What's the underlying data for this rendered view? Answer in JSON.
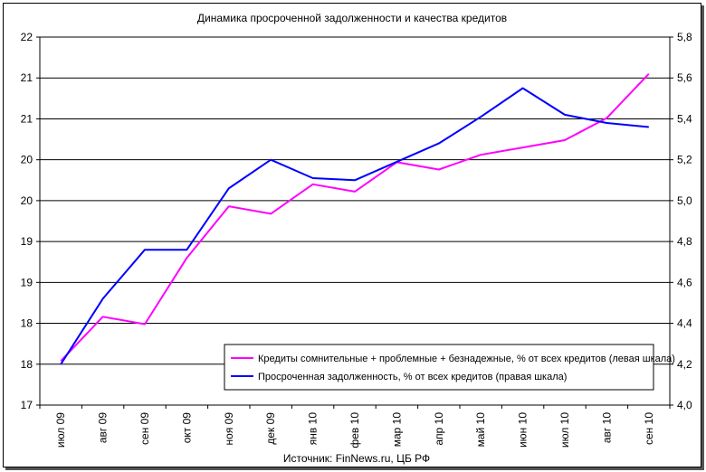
{
  "chart_data": {
    "type": "line",
    "title": "Динамика просроченной задолженности и качества кредитов",
    "source": "Источник: FinNews.ru, ЦБ РФ",
    "categories": [
      "июл 09",
      "авг 09",
      "сен 09",
      "окт 09",
      "ноя 09",
      "дек 09",
      "янв 10",
      "фев 10",
      "мар 10",
      "апр 10",
      "май 10",
      "июн 10",
      "июл 10",
      "авг 10",
      "сен 10"
    ],
    "left_axis": {
      "ticks": [
        "17",
        "18",
        "18",
        "19",
        "19",
        "20",
        "20",
        "21",
        "21",
        "22"
      ],
      "range": [
        17,
        22
      ]
    },
    "right_axis": {
      "ticks": [
        "4,0",
        "4,2",
        "4,4",
        "4,6",
        "4,8",
        "5,0",
        "5,2",
        "5,4",
        "5,6",
        "5,8"
      ],
      "range": [
        4.0,
        5.8
      ]
    },
    "series": [
      {
        "name": "Кредиты сомнительные + проблемные + безнадежные, % от всех кредитов (левая шкала)",
        "color": "#ff00ff",
        "axis": "left",
        "values": [
          17.6,
          18.2,
          18.1,
          19.0,
          19.7,
          19.6,
          20.0,
          19.9,
          20.3,
          20.2,
          20.4,
          20.5,
          20.6,
          20.9,
          21.5
        ]
      },
      {
        "name": "Просроченная задолженность, % от всех кредитов (правая шкала)",
        "color": "#0000ff",
        "axis": "right",
        "values": [
          4.2,
          4.52,
          4.76,
          4.76,
          5.06,
          5.2,
          5.11,
          5.1,
          5.19,
          5.28,
          5.41,
          5.55,
          5.42,
          5.38,
          5.36
        ]
      }
    ],
    "legend": "bottom-right",
    "grid": true
  }
}
